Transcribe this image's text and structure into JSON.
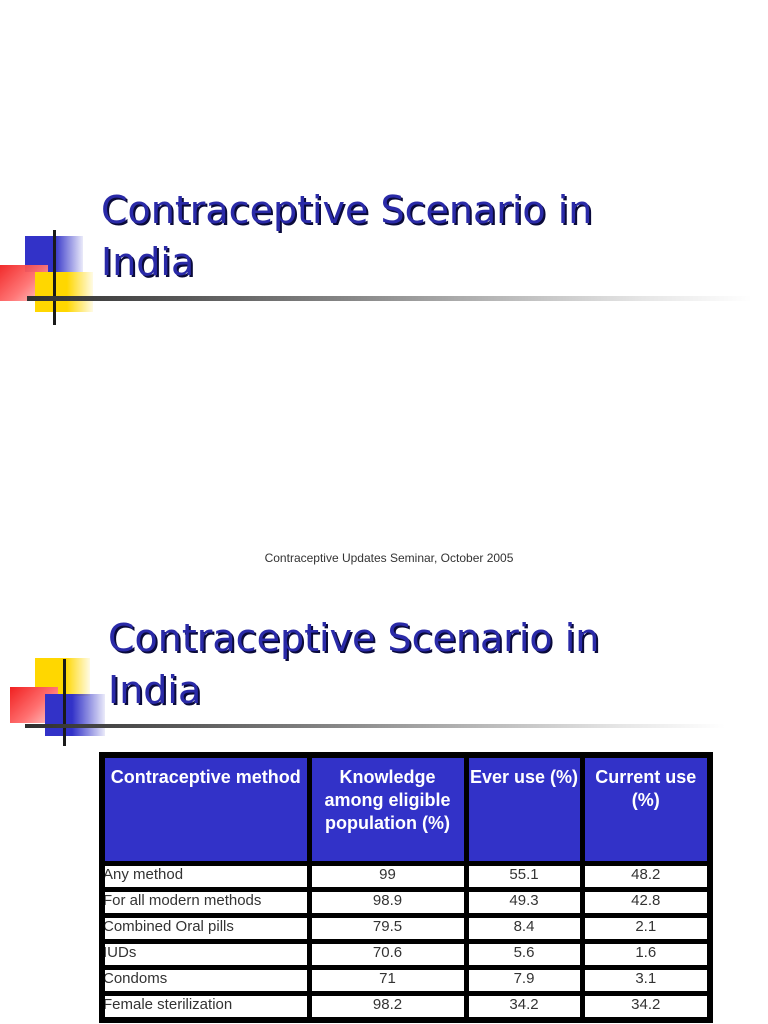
{
  "slides": [
    {
      "title": "Contraceptive Scenario in\nIndia",
      "footer": "Contraceptive Updates Seminar, October 2005"
    },
    {
      "title": "Contraceptive Scenario in\nIndia",
      "table": {
        "headers": [
          "Contraceptive method",
          "Knowledge among eligible population (%)",
          "Ever use (%)",
          "Current use (%)"
        ],
        "rows": [
          [
            "Any method",
            "99",
            "55.1",
            "48.2"
          ],
          [
            "For all modern methods",
            "98.9",
            "49.3",
            "42.8"
          ],
          [
            "Combined Oral pills",
            "79.5",
            "8.4",
            "2.1"
          ],
          [
            "IUDs",
            "70.6",
            "5.6",
            "1.6"
          ],
          [
            "Condoms",
            "71",
            "7.9",
            "3.1"
          ],
          [
            "Female sterilization",
            "98.2",
            "34.2",
            "34.2"
          ]
        ]
      }
    }
  ],
  "colors": {
    "title": "#2a2aa8",
    "header_bg": "#3232c8",
    "header_text": "#ffffff",
    "logo_blue": "#3232c8",
    "logo_red": "#f02020",
    "logo_yellow": "#ffd700"
  }
}
